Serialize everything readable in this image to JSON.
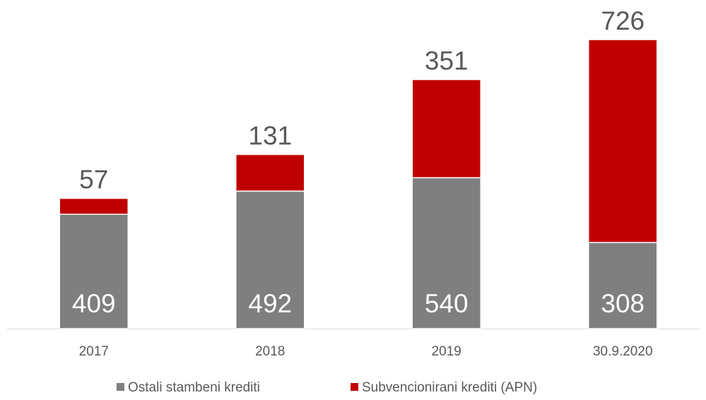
{
  "chart_data": {
    "type": "stacked_bar",
    "categories": [
      "2017",
      "2018",
      "2019",
      "30.9.2020"
    ],
    "series": [
      {
        "name": "Ostali stambeni krediti",
        "color": "#7f7f7f",
        "values": [
          409,
          492,
          540,
          308
        ]
      },
      {
        "name": "Subvencionirani krediti (APN)",
        "color": "#c00000",
        "values": [
          57,
          131,
          351,
          726
        ]
      }
    ]
  }
}
